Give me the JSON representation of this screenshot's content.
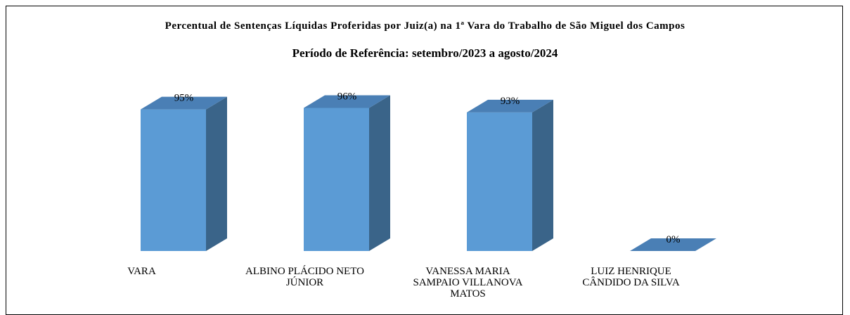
{
  "chart_data": {
    "type": "bar3d",
    "title": "Percentual de Sentenças Líquidas Proferidas por Juiz(a) na 1ª Vara do Trabalho de São Miguel dos Campos",
    "subtitle": "Período de Referência: setembro/2023 a agosto/2024",
    "categories": [
      "VARA",
      "ALBINO PLÁCIDO NETO JÚNIOR",
      "VANESSA MARIA SAMPAIO VILLANOVA MATOS",
      "LUIZ HENRIQUE CÂNDIDO DA SILVA"
    ],
    "values": [
      95,
      96,
      93,
      0
    ],
    "value_labels": [
      "95%",
      "96%",
      "93%",
      "0%"
    ],
    "color": "#5b9bd5"
  }
}
